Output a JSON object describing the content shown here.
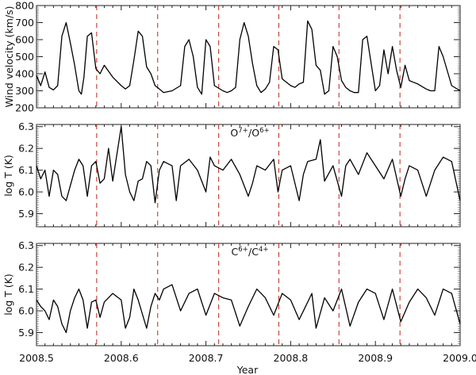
{
  "chart_data": [
    {
      "type": "line",
      "panel": 1,
      "ylabel": "Wind velocity (km/s)",
      "ylim": [
        200,
        800
      ],
      "yticks": [
        200,
        300,
        400,
        500,
        600,
        700,
        800
      ],
      "xlim": [
        2008.5,
        2009.0
      ],
      "annotation": "",
      "series": [
        {
          "name": "Wind velocity",
          "color": "#000000",
          "x": [
            2008.5,
            2008.505,
            2008.51,
            2008.515,
            2008.52,
            2008.525,
            2008.53,
            2008.535,
            2008.54,
            2008.545,
            2008.55,
            2008.553,
            2008.556,
            2008.56,
            2008.565,
            2008.57,
            2008.575,
            2008.58,
            2008.59,
            2008.6,
            2008.605,
            2008.61,
            2008.615,
            2008.62,
            2008.625,
            2008.63,
            2008.635,
            2008.64,
            2008.645,
            2008.65,
            2008.66,
            2008.67,
            2008.675,
            2008.68,
            2008.685,
            2008.69,
            2008.695,
            2008.7,
            2008.705,
            2008.71,
            2008.72,
            2008.725,
            2008.73,
            2008.735,
            2008.74,
            2008.745,
            2008.75,
            2008.755,
            2008.76,
            2008.765,
            2008.77,
            2008.775,
            2008.78,
            2008.785,
            2008.79,
            2008.8,
            2008.805,
            2008.81,
            2008.815,
            2008.82,
            2008.825,
            2008.83,
            2008.835,
            2008.84,
            2008.845,
            2008.85,
            2008.855,
            2008.86,
            2008.865,
            2008.87,
            2008.875,
            2008.88,
            2008.885,
            2008.89,
            2008.9,
            2008.905,
            2008.91,
            2008.915,
            2008.92,
            2008.925,
            2008.93,
            2008.935,
            2008.94,
            2008.945,
            2008.95,
            2008.96,
            2008.965,
            2008.97,
            2008.975,
            2008.98,
            2008.99,
            2009.0
          ],
          "y": [
            390,
            330,
            410,
            320,
            305,
            330,
            620,
            700,
            580,
            450,
            300,
            280,
            380,
            620,
            640,
            430,
            400,
            450,
            380,
            330,
            310,
            330,
            480,
            650,
            620,
            440,
            400,
            330,
            310,
            290,
            300,
            330,
            560,
            600,
            500,
            320,
            280,
            600,
            560,
            330,
            300,
            290,
            300,
            320,
            600,
            700,
            620,
            460,
            330,
            290,
            310,
            350,
            560,
            540,
            370,
            330,
            320,
            340,
            350,
            710,
            660,
            450,
            420,
            280,
            300,
            560,
            500,
            360,
            320,
            300,
            290,
            290,
            600,
            620,
            300,
            330,
            540,
            400,
            560,
            420,
            320,
            450,
            360,
            350,
            340,
            310,
            300,
            300,
            560,
            500,
            330,
            300
          ]
        }
      ],
      "vlines": {
        "x": [
          2008.571,
          2008.643,
          2008.715,
          2008.786,
          2008.857,
          2008.929
        ],
        "style": "dashed",
        "color": "#c0392b"
      }
    },
    {
      "type": "line",
      "panel": 2,
      "ylabel": "log T (K)",
      "ylim": [
        5.84,
        6.31
      ],
      "yticks": [
        5.9,
        6.0,
        6.1,
        6.2,
        6.3
      ],
      "xlim": [
        2008.5,
        2009.0
      ],
      "annotation": "O7+/O6+",
      "series": [
        {
          "name": "O7+/O6+",
          "color": "#000000",
          "x": [
            2008.5,
            2008.505,
            2008.51,
            2008.515,
            2008.52,
            2008.525,
            2008.53,
            2008.535,
            2008.54,
            2008.545,
            2008.55,
            2008.555,
            2008.56,
            2008.565,
            2008.57,
            2008.575,
            2008.58,
            2008.585,
            2008.59,
            2008.6,
            2008.605,
            2008.61,
            2008.615,
            2008.62,
            2008.625,
            2008.63,
            2008.635,
            2008.64,
            2008.645,
            2008.65,
            2008.66,
            2008.665,
            2008.67,
            2008.68,
            2008.69,
            2008.7,
            2008.705,
            2008.71,
            2008.72,
            2008.73,
            2008.74,
            2008.75,
            2008.755,
            2008.76,
            2008.77,
            2008.78,
            2008.785,
            2008.79,
            2008.8,
            2008.81,
            2008.815,
            2008.82,
            2008.83,
            2008.835,
            2008.84,
            2008.85,
            2008.86,
            2008.865,
            2008.87,
            2008.88,
            2008.89,
            2008.9,
            2008.91,
            2008.92,
            2008.93,
            2008.935,
            2008.94,
            2008.95,
            2008.96,
            2008.97,
            2008.98,
            2008.99,
            2009.0
          ],
          "y": [
            6.12,
            6.06,
            6.1,
            5.98,
            6.1,
            6.08,
            5.98,
            5.96,
            6.03,
            6.1,
            6.15,
            6.12,
            5.98,
            6.12,
            6.14,
            6.04,
            6.06,
            6.2,
            6.05,
            6.3,
            6.08,
            6.0,
            5.96,
            6.05,
            6.06,
            6.14,
            6.12,
            5.95,
            6.1,
            6.14,
            6.12,
            5.96,
            6.12,
            6.15,
            6.1,
            6.0,
            6.16,
            6.12,
            6.1,
            6.15,
            6.08,
            5.98,
            6.04,
            6.12,
            6.1,
            6.15,
            6.0,
            6.1,
            6.12,
            5.96,
            6.08,
            6.14,
            6.15,
            6.24,
            6.05,
            6.12,
            5.98,
            6.12,
            6.15,
            6.08,
            6.18,
            6.12,
            6.06,
            6.15,
            5.98,
            6.06,
            6.12,
            6.1,
            5.98,
            6.1,
            6.16,
            6.14,
            5.96
          ]
        }
      ],
      "vlines": {
        "x": [
          2008.571,
          2008.643,
          2008.715,
          2008.786,
          2008.857,
          2008.929
        ],
        "style": "dashed",
        "color": "#c0392b"
      }
    },
    {
      "type": "line",
      "panel": 3,
      "ylabel": "log T (K)",
      "ylim": [
        5.84,
        6.31
      ],
      "yticks": [
        5.9,
        6.0,
        6.1,
        6.2,
        6.3
      ],
      "xlim": [
        2008.5,
        2009.0
      ],
      "xlabel": "Year",
      "xticks": [
        2008.5,
        2008.6,
        2008.7,
        2008.8,
        2008.9,
        2009.0
      ],
      "xtick_labels": [
        "2008.5",
        "2008.6",
        "2008.7",
        "2008.8",
        "2008.9",
        "2009.0"
      ],
      "annotation": "C6+/C4+",
      "series": [
        {
          "name": "C6+/C4+",
          "color": "#000000",
          "x": [
            2008.5,
            2008.505,
            2008.51,
            2008.515,
            2008.52,
            2008.525,
            2008.53,
            2008.535,
            2008.54,
            2008.545,
            2008.55,
            2008.555,
            2008.56,
            2008.565,
            2008.57,
            2008.575,
            2008.58,
            2008.59,
            2008.6,
            2008.605,
            2008.61,
            2008.615,
            2008.62,
            2008.63,
            2008.635,
            2008.64,
            2008.645,
            2008.65,
            2008.66,
            2008.67,
            2008.68,
            2008.69,
            2008.7,
            2008.71,
            2008.72,
            2008.73,
            2008.74,
            2008.75,
            2008.76,
            2008.77,
            2008.78,
            2008.79,
            2008.8,
            2008.81,
            2008.82,
            2008.825,
            2008.83,
            2008.84,
            2008.85,
            2008.86,
            2008.87,
            2008.88,
            2008.89,
            2008.9,
            2008.91,
            2008.92,
            2008.93,
            2008.94,
            2008.95,
            2008.96,
            2008.97,
            2008.98,
            2008.99,
            2009.0
          ],
          "y": [
            6.05,
            6.02,
            6.0,
            5.96,
            6.05,
            6.02,
            5.94,
            5.9,
            6.0,
            6.06,
            6.1,
            6.05,
            5.92,
            6.04,
            6.05,
            5.97,
            6.04,
            6.08,
            6.05,
            5.92,
            5.97,
            6.1,
            6.05,
            5.92,
            6.02,
            6.08,
            6.05,
            6.1,
            6.12,
            6.0,
            6.08,
            6.1,
            5.98,
            6.08,
            6.06,
            6.05,
            5.93,
            6.02,
            6.1,
            6.06,
            5.98,
            6.08,
            6.05,
            5.96,
            6.04,
            6.08,
            5.92,
            6.06,
            6.0,
            6.1,
            5.93,
            6.04,
            6.1,
            6.08,
            5.96,
            6.1,
            5.95,
            6.04,
            6.1,
            6.06,
            5.98,
            6.1,
            6.08,
            5.94
          ]
        }
      ],
      "vlines": {
        "x": [
          2008.571,
          2008.643,
          2008.715,
          2008.786,
          2008.857,
          2008.929
        ],
        "style": "dashed",
        "color": "#c0392b"
      }
    }
  ]
}
